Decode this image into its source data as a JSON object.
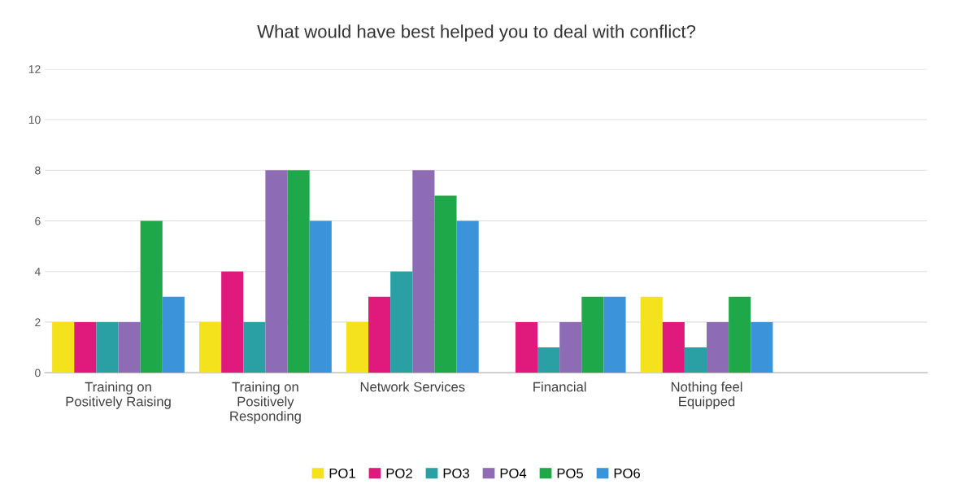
{
  "chart_data": {
    "type": "bar",
    "title": "What would have best helped you to deal with conflict?",
    "categories": [
      "Training on\nPositively Raising",
      "Training on\nPositively\nResponding",
      "Network Services",
      "Financial",
      "Nothing feel\nEquipped",
      null
    ],
    "series": [
      {
        "name": "PO1",
        "color": "#f4e21c",
        "values": [
          2,
          2,
          2,
          0,
          3,
          null
        ]
      },
      {
        "name": "PO2",
        "color": "#e0197d",
        "values": [
          2,
          4,
          3,
          2,
          2,
          null
        ]
      },
      {
        "name": "PO3",
        "color": "#2aa0a4",
        "values": [
          2,
          2,
          4,
          1,
          1,
          null
        ]
      },
      {
        "name": "PO4",
        "color": "#8e6bb5",
        "values": [
          2,
          8,
          8,
          2,
          2,
          null
        ]
      },
      {
        "name": "PO5",
        "color": "#1ea84a",
        "values": [
          6,
          8,
          7,
          3,
          3,
          null
        ]
      },
      {
        "name": "PO6",
        "color": "#3b94d9",
        "values": [
          3,
          6,
          6,
          3,
          2,
          null
        ]
      }
    ],
    "ylim": [
      0,
      12
    ],
    "yticks": [
      0,
      2,
      4,
      6,
      8,
      10,
      12
    ],
    "grid": "y",
    "legend": "bottom"
  }
}
